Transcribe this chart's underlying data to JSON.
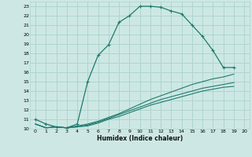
{
  "xlabel": "Humidex (Indice chaleur)",
  "bg_color": "#cde8e4",
  "grid_color": "#b0d4ce",
  "line_color": "#1e7a6e",
  "xlim": [
    -0.5,
    20.5
  ],
  "ylim": [
    10,
    23.5
  ],
  "xticks": [
    0,
    1,
    2,
    3,
    4,
    5,
    6,
    7,
    8,
    9,
    10,
    11,
    12,
    13,
    14,
    15,
    16,
    17,
    18,
    19,
    20
  ],
  "yticks": [
    10,
    11,
    12,
    13,
    14,
    15,
    16,
    17,
    18,
    19,
    20,
    21,
    22,
    23
  ],
  "series1_x": [
    0,
    1,
    2,
    3,
    4,
    5,
    6,
    7,
    8,
    9,
    10,
    11,
    12,
    13,
    14,
    15,
    16,
    17,
    18,
    19
  ],
  "series1_y": [
    11.0,
    10.5,
    10.2,
    10.1,
    10.5,
    15.0,
    17.8,
    18.9,
    21.3,
    22.0,
    23.0,
    23.0,
    22.9,
    22.5,
    22.2,
    21.0,
    19.8,
    18.3,
    16.5,
    16.5
  ],
  "series2_x": [
    0,
    1,
    2,
    3,
    4,
    5,
    6,
    7,
    8,
    9,
    10,
    11,
    12,
    13,
    14,
    15,
    16,
    17,
    18,
    19,
    20
  ],
  "series2_y": [
    10.5,
    10.1,
    10.2,
    10.1,
    10.3,
    10.5,
    10.8,
    11.2,
    11.6,
    12.1,
    12.6,
    13.1,
    13.5,
    13.9,
    14.3,
    14.7,
    15.0,
    15.3,
    15.5,
    15.8,
    null
  ],
  "series3_x": [
    0,
    1,
    2,
    3,
    4,
    5,
    6,
    7,
    8,
    9,
    10,
    11,
    12,
    13,
    14,
    15,
    16,
    17,
    18,
    19,
    20
  ],
  "series3_y": [
    10.5,
    10.1,
    10.2,
    10.1,
    10.2,
    10.4,
    10.7,
    11.1,
    11.5,
    11.9,
    12.3,
    12.7,
    13.1,
    13.4,
    13.7,
    14.0,
    14.3,
    14.5,
    14.7,
    14.9,
    null
  ],
  "series4_x": [
    0,
    1,
    2,
    3,
    4,
    5,
    6,
    7,
    8,
    9,
    10,
    11,
    12,
    13,
    14,
    15,
    16,
    17,
    18,
    19,
    20
  ],
  "series4_y": [
    10.5,
    10.1,
    10.2,
    10.1,
    10.2,
    10.3,
    10.6,
    11.0,
    11.3,
    11.7,
    12.1,
    12.5,
    12.8,
    13.1,
    13.4,
    13.7,
    14.0,
    14.2,
    14.4,
    14.5,
    null
  ]
}
